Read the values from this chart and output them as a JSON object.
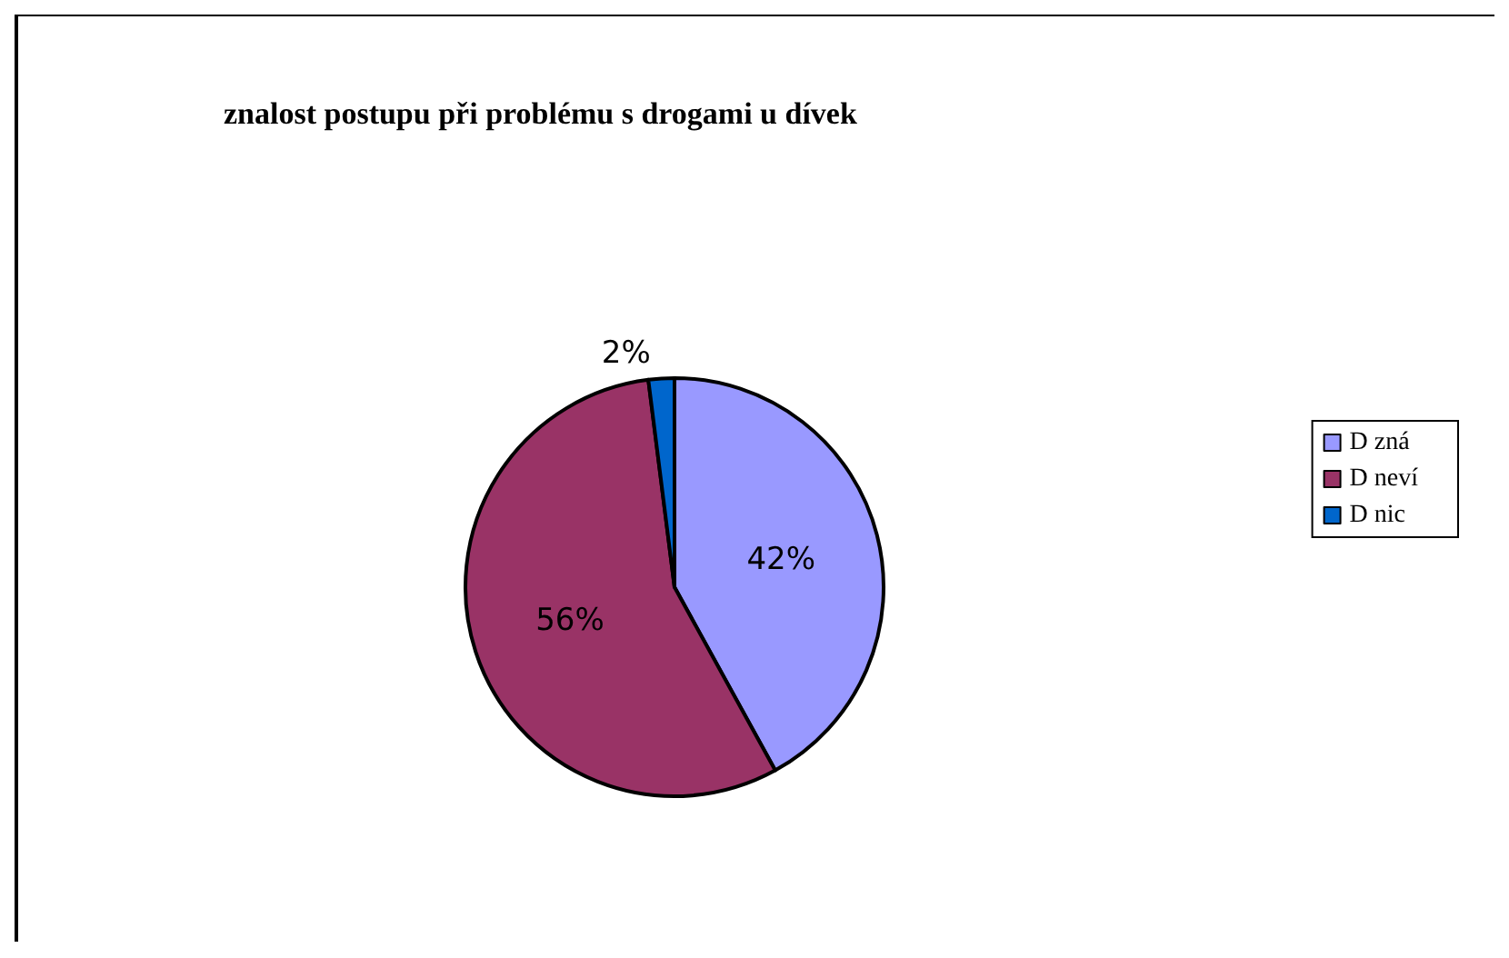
{
  "chart_data": {
    "type": "pie",
    "title": "znalost postupu při problému s drogami u dívek",
    "categories": [
      "D zná",
      "D neví",
      "D nic"
    ],
    "values": [
      42,
      56,
      2
    ],
    "colors": [
      "#9999ff",
      "#993366",
      "#0066cc"
    ],
    "value_labels": [
      "42%",
      "56%",
      "2%"
    ],
    "legend": "right"
  }
}
